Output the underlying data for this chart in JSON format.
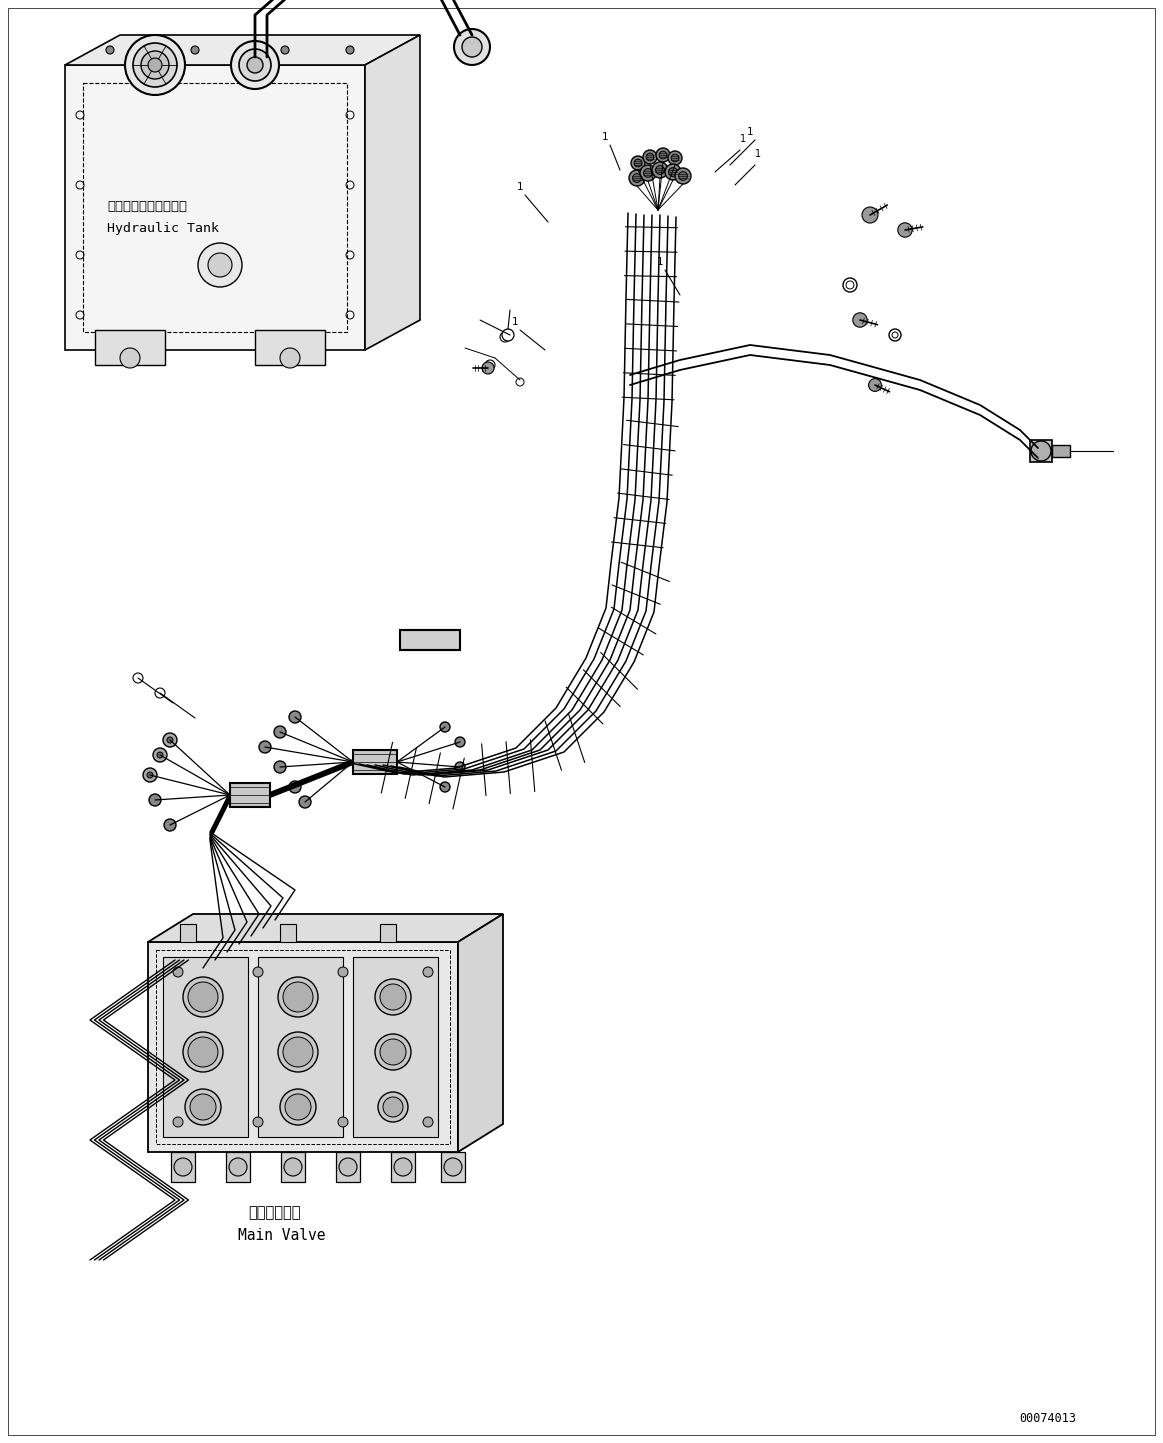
{
  "title": "",
  "background_color": "#ffffff",
  "line_color": "#000000",
  "fig_width": 11.63,
  "fig_height": 14.43,
  "dpi": 100,
  "hydraulic_tank_label_jp": "ハイドロリックタンク",
  "hydraulic_tank_label_en": "Hydraulic Tank",
  "main_valve_label_jp": "メインバルブ",
  "main_valve_label_en": "Main Valve",
  "part_number": "00074013"
}
